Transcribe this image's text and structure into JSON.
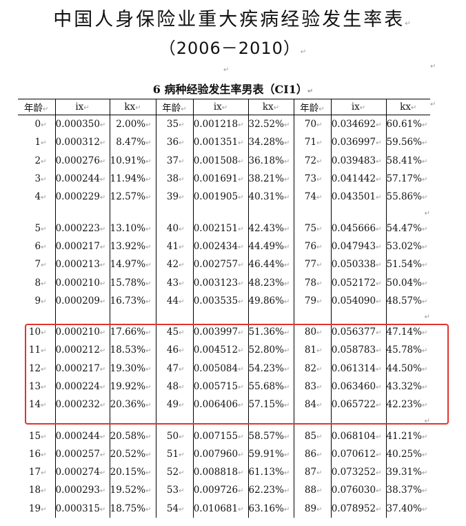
{
  "title_line1": "中国人身保险业重大疾病经验发生率表",
  "title_line2": "（2006－2010）",
  "paragraph_mark": "↵",
  "table_title": "6 病种经验发生率男表（CI1）",
  "headers": [
    "年龄",
    "ix",
    "kx",
    "年龄",
    "ix",
    "kx",
    "年龄",
    "ix",
    "kx"
  ],
  "rows": [
    [
      "0",
      "0.000350",
      "2.00%",
      "35",
      "0.001218",
      "32.52%",
      "70",
      "0.034692",
      "60.61%"
    ],
    [
      "1",
      "0.000312",
      "8.47%",
      "36",
      "0.001351",
      "34.28%",
      "71",
      "0.036997",
      "59.56%"
    ],
    [
      "2",
      "0.000276",
      "10.91%",
      "37",
      "0.001508",
      "36.18%",
      "72",
      "0.039483",
      "58.41%"
    ],
    [
      "3",
      "0.000244",
      "11.94%",
      "38",
      "0.001691",
      "38.21%",
      "73",
      "0.041442",
      "57.17%"
    ],
    [
      "4",
      "0.000229",
      "12.57%",
      "39",
      "0.001905",
      "40.31%",
      "74",
      "0.043501",
      "55.86%"
    ],
    [
      "5",
      "0.000223",
      "13.10%",
      "40",
      "0.002151",
      "42.43%",
      "75",
      "0.045666",
      "54.47%"
    ],
    [
      "6",
      "0.000217",
      "13.92%",
      "41",
      "0.002434",
      "44.49%",
      "76",
      "0.047943",
      "53.02%"
    ],
    [
      "7",
      "0.000213",
      "14.97%",
      "42",
      "0.002757",
      "46.44%",
      "77",
      "0.050338",
      "51.54%"
    ],
    [
      "8",
      "0.000210",
      "15.78%",
      "43",
      "0.003123",
      "48.23%",
      "78",
      "0.052172",
      "50.04%"
    ],
    [
      "9",
      "0.000209",
      "16.73%",
      "44",
      "0.003535",
      "49.86%",
      "79",
      "0.054090",
      "48.57%"
    ],
    [
      "10",
      "0.000210",
      "17.66%",
      "45",
      "0.003997",
      "51.36%",
      "80",
      "0.056377",
      "47.14%"
    ],
    [
      "11",
      "0.000212",
      "18.53%",
      "46",
      "0.004512",
      "52.80%",
      "81",
      "0.058783",
      "45.78%"
    ],
    [
      "12",
      "0.000217",
      "19.30%",
      "47",
      "0.005084",
      "54.23%",
      "82",
      "0.061314",
      "44.50%"
    ],
    [
      "13",
      "0.000224",
      "19.92%",
      "48",
      "0.005715",
      "55.68%",
      "83",
      "0.063460",
      "43.32%"
    ],
    [
      "14",
      "0.000232",
      "20.36%",
      "49",
      "0.006406",
      "57.15%",
      "84",
      "0.065722",
      "42.23%"
    ],
    [
      "15",
      "0.000244",
      "20.58%",
      "50",
      "0.007155",
      "58.57%",
      "85",
      "0.068104",
      "41.21%"
    ],
    [
      "16",
      "0.000257",
      "20.52%",
      "51",
      "0.007960",
      "59.91%",
      "86",
      "0.070612",
      "40.25%"
    ],
    [
      "17",
      "0.000274",
      "20.15%",
      "52",
      "0.008818",
      "61.13%",
      "87",
      "0.073252",
      "39.31%"
    ],
    [
      "18",
      "0.000293",
      "19.52%",
      "53",
      "0.009726",
      "62.23%",
      "88",
      "0.076030",
      "38.37%"
    ],
    [
      "19",
      "0.000315",
      "18.75%",
      "54",
      "0.010681",
      "63.16%",
      "89",
      "0.078952",
      "37.40%"
    ]
  ],
  "highlight_color": "#e0322f"
}
